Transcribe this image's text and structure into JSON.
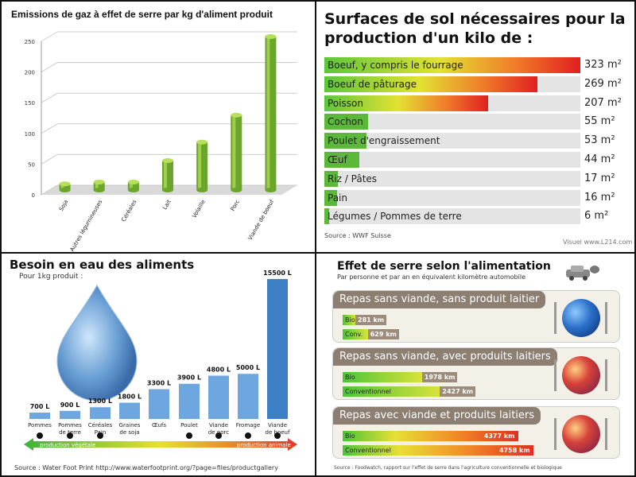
{
  "panel1": {
    "title": "Emissions de gaz à effet de serre par kg d'aliment produit",
    "chart_data": {
      "type": "bar",
      "categories": [
        "Soja",
        "Autres légumineuses",
        "Céréales",
        "Lait",
        "Volaille",
        "Porc",
        "Viande de boeuf"
      ],
      "values": [
        10,
        13,
        13,
        48,
        78,
        122,
        250
      ],
      "ylim": [
        0,
        250
      ],
      "yticks": [
        0,
        50,
        100,
        150,
        200,
        250
      ],
      "grid": true
    },
    "colors": {
      "bar": "#6aa52c",
      "bar_light": "#b6e05a"
    }
  },
  "panel2": {
    "title": "Surfaces de sol nécessaires pour la production d'un kilo de :",
    "chart_data": {
      "type": "bar",
      "categories": [
        "Boeuf, y compris le fourrage",
        "Boeuf de pâturage",
        "Poisson",
        "Cochon",
        "Poulet d'engraissement",
        "Œuf",
        "Riz / Pâtes",
        "Pain",
        "Légumes / Pommes de terre"
      ],
      "values": [
        323,
        269,
        207,
        55,
        53,
        44,
        17,
        16,
        6
      ],
      "value_labels": [
        "323 m²",
        "269 m²",
        "207 m²",
        "55 m²",
        "53 m²",
        "44 m²",
        "17 m²",
        "16 m²",
        "6 m²"
      ],
      "xlim": [
        0,
        323
      ]
    },
    "source": "Source : WWF Suisse",
    "credit": "Visuel www.L214.com"
  },
  "panel3": {
    "title": "Besoin en eau des aliments",
    "subtitle": "Pour 1kg produit :",
    "chart_data": {
      "type": "bar",
      "categories": [
        "Pommes",
        "Pommes de terre",
        "Céréales Pain",
        "Graines de soja",
        "Œufs",
        "Poulet",
        "Viande de porc",
        "Fromage",
        "Viande de boeuf"
      ],
      "values": [
        700,
        900,
        1300,
        1800,
        3300,
        3900,
        4800,
        5000,
        15500
      ],
      "value_labels": [
        "700 L",
        "900 L",
        "1300 L",
        "1800 L",
        "3300 L",
        "3900 L",
        "4800 L",
        "5000 L",
        "15500 L"
      ],
      "category_lines": [
        [
          "Pommes"
        ],
        [
          "Pommes",
          "de terre"
        ],
        [
          "Céréales",
          "Pain"
        ],
        [
          "Graines",
          "de soja"
        ],
        [
          "Œufs"
        ],
        [
          "Poulet"
        ],
        [
          "Viande",
          "de porc"
        ],
        [
          "Fromage"
        ],
        [
          "Viande",
          "de boeuf"
        ]
      ]
    },
    "arrow": {
      "left": "production végétale",
      "right": "production animale"
    },
    "source": "Source : Water Foot Print http://www.waterfootprint.org/?page=files/productgallery"
  },
  "panel4": {
    "title": "Effet de serre selon l'alimentation",
    "subtitle": "Par personne et par an en équivalent kilomètre automobile",
    "chart_data": {
      "type": "bar",
      "groups": [
        {
          "name": "Repas sans viande, sans produit laitier",
          "items": [
            {
              "label": "Bio",
              "value": 281,
              "value_label": "281 km"
            },
            {
              "label": "Conv.",
              "value": 629,
              "value_label": "629 km"
            }
          ]
        },
        {
          "name": "Repas sans viande, avec produits laitiers",
          "items": [
            {
              "label": "Bio",
              "value": 1978,
              "value_label": "1978 km"
            },
            {
              "label": "Conventionnel",
              "value": 2427,
              "value_label": "2427 km"
            }
          ]
        },
        {
          "name": "Repas avec viande et produits laitiers",
          "items": [
            {
              "label": "Bio",
              "value": 4377,
              "value_label": "4377 km"
            },
            {
              "label": "Conventionnel",
              "value": 4758,
              "value_label": "4758 km"
            }
          ]
        }
      ],
      "xlim": [
        0,
        4758
      ]
    },
    "source": "Source : Foodwatch, rapport sur l'effet de serre dans l'agriculture conventionnelle et biologique",
    "icons": [
      "car-icon",
      "globe-icon",
      "fork-icon",
      "knife-icon"
    ]
  }
}
